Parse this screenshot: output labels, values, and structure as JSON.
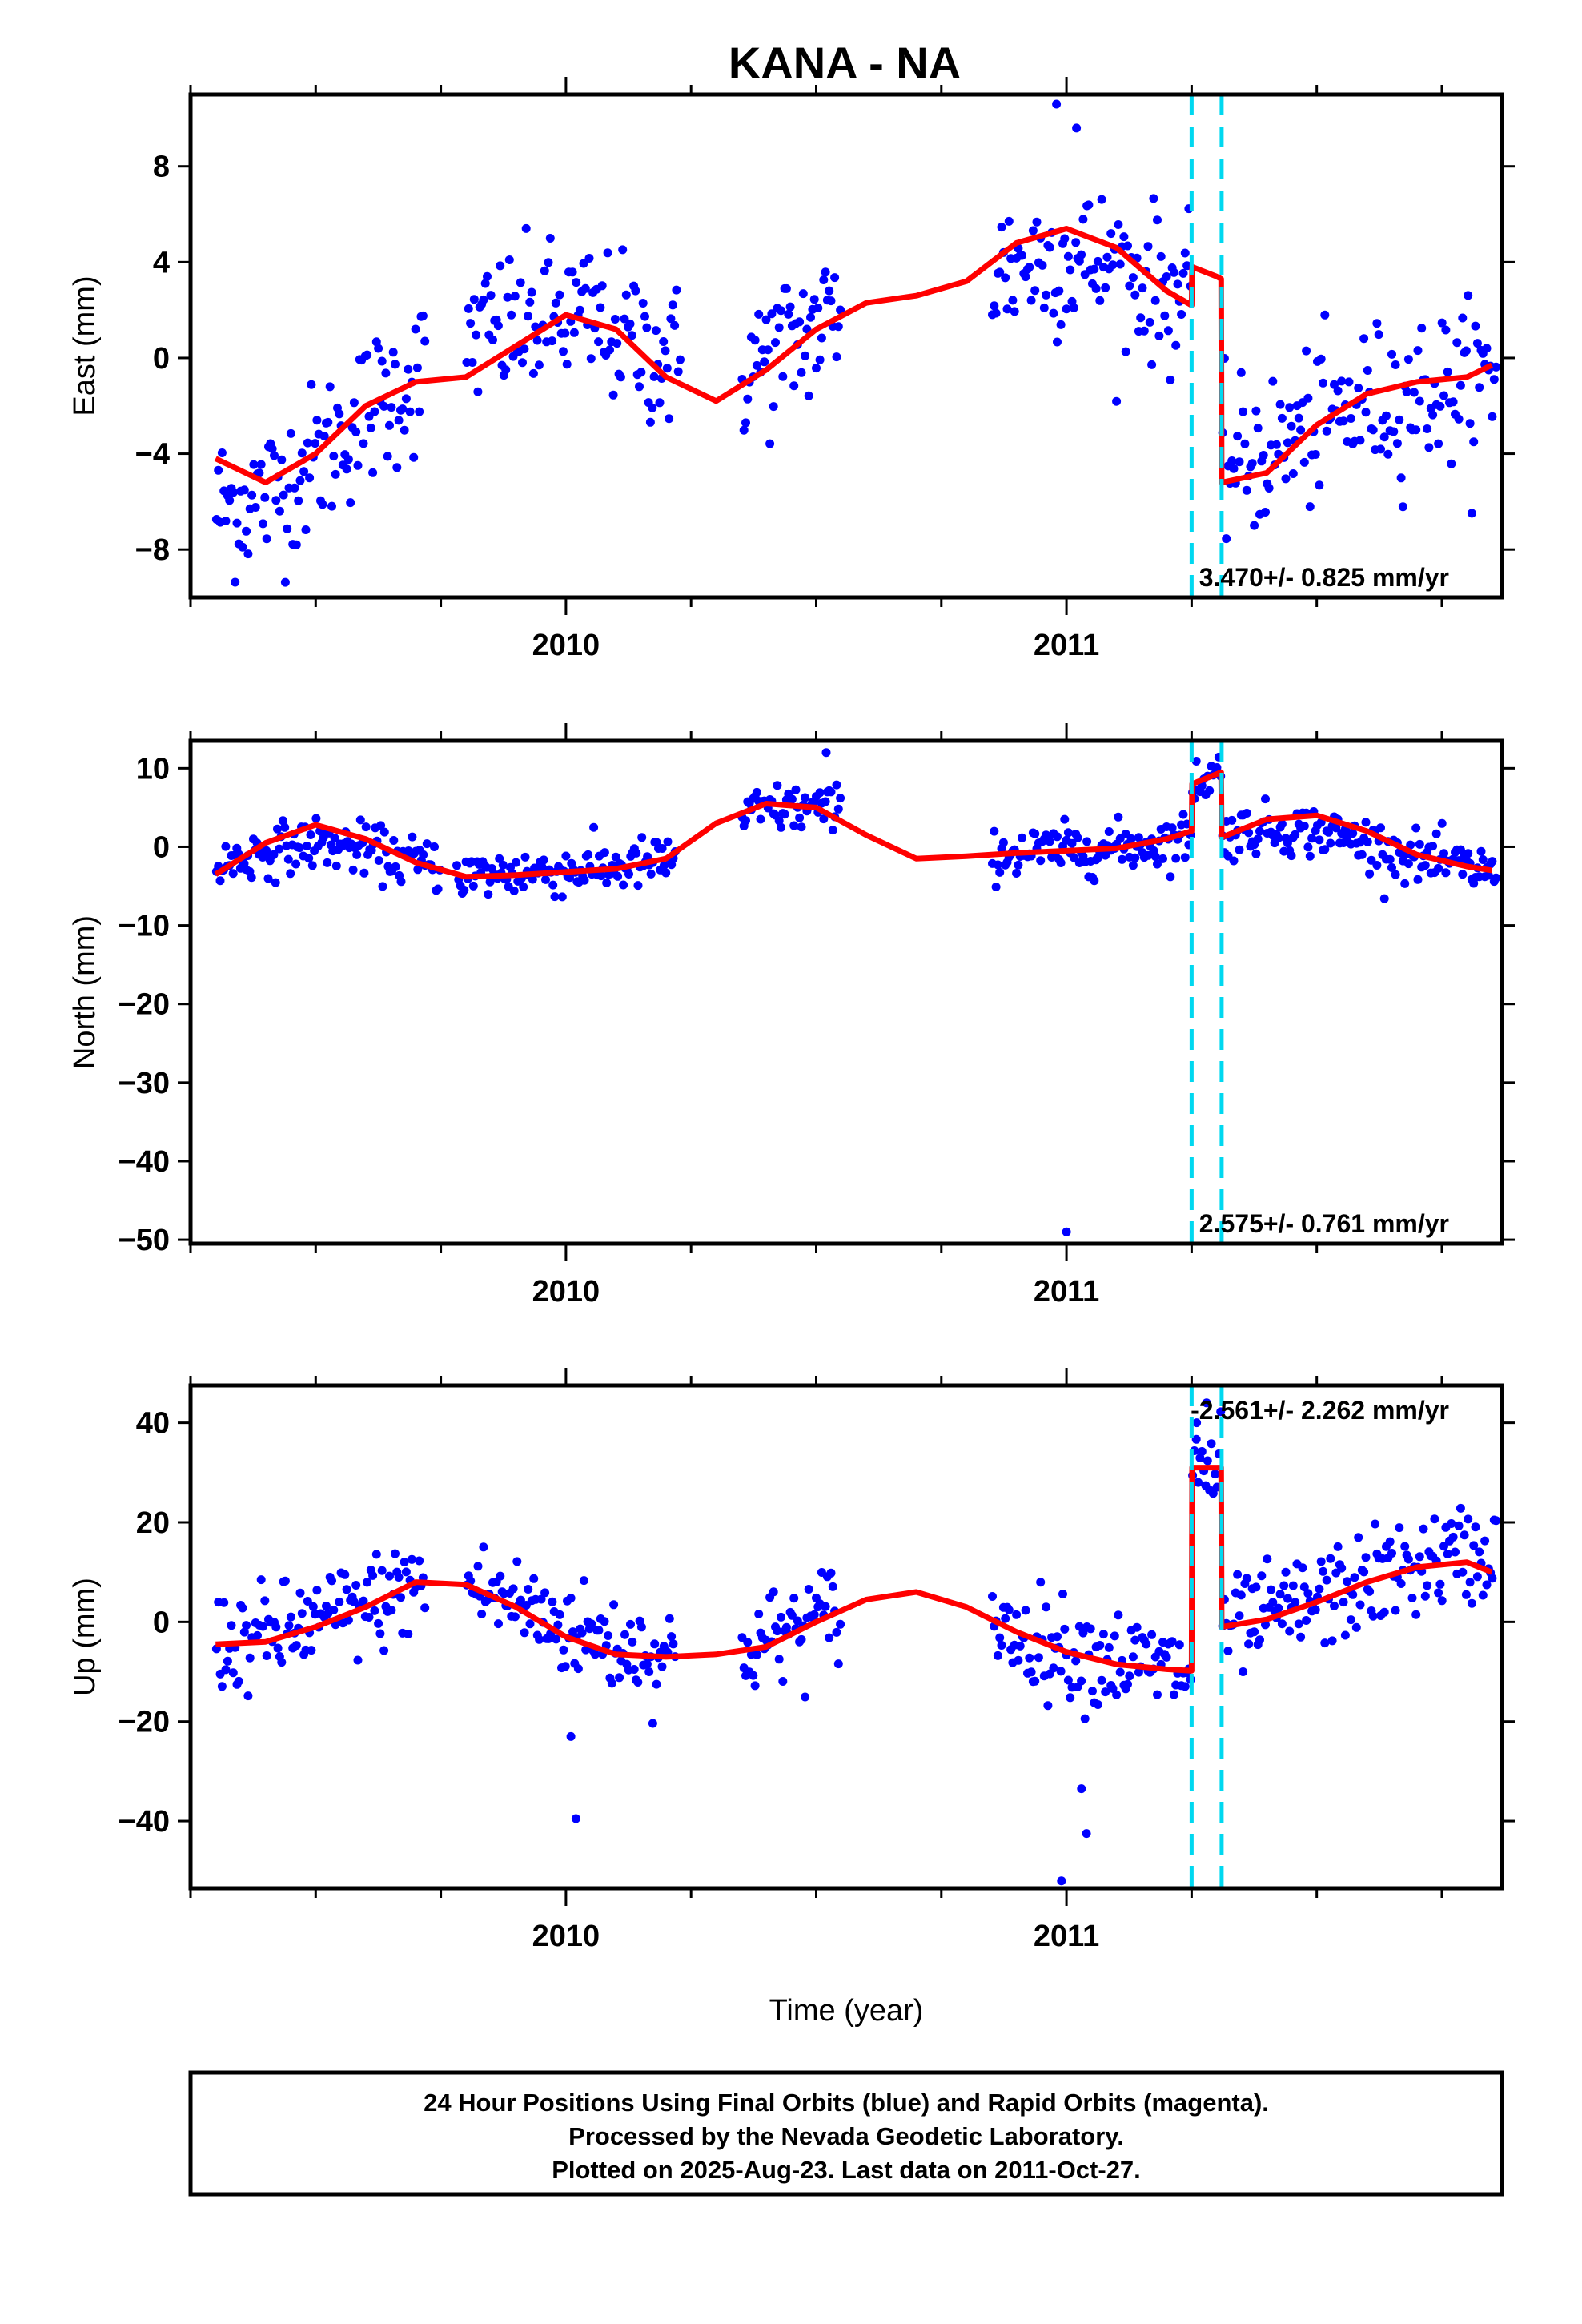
{
  "title": "KANA - NA",
  "colors": {
    "final_orbits": "#0000ff",
    "model": "#ff0000",
    "offset_lines": "#00d8f0",
    "frame": "#000000"
  },
  "chart_data": [
    {
      "type": "scatter",
      "name": "east",
      "ylabel": "East (mm)",
      "xlabel": "",
      "xlim": [
        2009.25,
        2011.87
      ],
      "ylim": [
        -10,
        11
      ],
      "x_ticks": [
        "2010",
        "2011"
      ],
      "y_ticks": [
        "8",
        "4",
        "0",
        "−4",
        "−8"
      ],
      "y_tick_values": [
        8,
        4,
        0,
        -4,
        -8
      ],
      "rate_label": "3.470+/- 0.825 mm/yr",
      "rate_position": "bottom-right",
      "offset_epochs": [
        2011.25,
        2011.31
      ],
      "model": {
        "x": [
          2009.3,
          2009.4,
          2009.5,
          2009.6,
          2009.7,
          2009.8,
          2009.9,
          2010.0,
          2010.1,
          2010.2,
          2010.3,
          2010.4,
          2010.5,
          2010.6,
          2010.7,
          2010.8,
          2010.9,
          2011.0,
          2011.1,
          2011.2,
          2011.25,
          2011.251,
          2011.3,
          2011.309,
          2011.31,
          2011.4,
          2011.5,
          2011.6,
          2011.7,
          2011.8,
          2011.85
        ],
        "y": [
          -4.2,
          -5.2,
          -4.0,
          -2.0,
          -1.0,
          -0.8,
          0.5,
          1.8,
          1.2,
          -0.8,
          -1.8,
          -0.5,
          1.2,
          2.3,
          2.6,
          3.2,
          4.8,
          5.4,
          4.6,
          2.8,
          2.2,
          3.8,
          3.4,
          3.3,
          -5.2,
          -4.8,
          -2.8,
          -1.5,
          -1.0,
          -0.8,
          -0.3
        ]
      },
      "segments": [
        {
          "x0": 2009.3,
          "x1": 2009.72,
          "y0": -8.3,
          "y1": -0.2
        },
        {
          "x0": 2009.8,
          "x1": 2010.23,
          "y0": 2.6,
          "y1": 0.6
        },
        {
          "x0": 2010.35,
          "x1": 2010.55,
          "y0": 0.0,
          "y1": 1.9
        },
        {
          "x0": 2010.85,
          "x1": 2011.25,
          "y0": 3.1,
          "y1": 2.8
        },
        {
          "x0": 2011.31,
          "x1": 2011.86,
          "y0": -3.6,
          "y1": -1.2
        }
      ],
      "scatter": 1.6,
      "outliers": [
        [
          2010.98,
          10.6
        ],
        [
          2011.02,
          9.6
        ]
      ]
    },
    {
      "type": "scatter",
      "name": "north",
      "ylabel": "North (mm)",
      "xlabel": "",
      "xlim": [
        2009.25,
        2011.87
      ],
      "ylim": [
        -50.5,
        13.5
      ],
      "x_ticks": [
        "2010",
        "2011"
      ],
      "y_ticks": [
        "10",
        "0",
        "−10",
        "−20",
        "−30",
        "−40",
        "−50"
      ],
      "y_tick_values": [
        10,
        0,
        -10,
        -20,
        -30,
        -40,
        -50
      ],
      "rate_label": "2.575+/- 0.761 mm/yr",
      "rate_position": "bottom-right",
      "offset_epochs": [
        2011.25,
        2011.31
      ],
      "model": {
        "x": [
          2009.3,
          2009.4,
          2009.5,
          2009.6,
          2009.7,
          2009.8,
          2009.9,
          2010.0,
          2010.1,
          2010.2,
          2010.3,
          2010.4,
          2010.5,
          2010.6,
          2010.7,
          2010.8,
          2010.9,
          2011.0,
          2011.1,
          2011.2,
          2011.25,
          2011.251,
          2011.309,
          2011.31,
          2011.4,
          2011.5,
          2011.6,
          2011.7,
          2011.8,
          2011.85
        ],
        "y": [
          -3.5,
          0.5,
          2.8,
          1.0,
          -2.0,
          -3.8,
          -3.6,
          -3.2,
          -2.8,
          -1.5,
          3.0,
          5.5,
          5.0,
          1.5,
          -1.5,
          -1.2,
          -0.8,
          -0.5,
          -0.2,
          1.0,
          2.0,
          8.0,
          9.5,
          1.2,
          3.5,
          4.0,
          2.0,
          -1.0,
          -2.5,
          -3.0
        ]
      },
      "segments": [
        {
          "x0": 2009.3,
          "x1": 2009.75,
          "y0": -1.5,
          "y1": -2.0
        },
        {
          "x0": 2009.78,
          "x1": 2010.22,
          "y0": -3.5,
          "y1": -2.0
        },
        {
          "x0": 2010.35,
          "x1": 2010.55,
          "y0": 3.5,
          "y1": 5.5
        },
        {
          "x0": 2010.85,
          "x1": 2011.25,
          "y0": -0.8,
          "y1": 0.5
        },
        {
          "x0": 2011.25,
          "x1": 2011.31,
          "y0": 8.5,
          "y1": 9.5
        },
        {
          "x0": 2011.31,
          "x1": 2011.86,
          "y0": 2.0,
          "y1": -3.5
        }
      ],
      "scatter": 1.6,
      "outliers": [
        [
          2011.0,
          -49.0
        ],
        [
          2010.52,
          12.0
        ]
      ]
    },
    {
      "type": "scatter",
      "name": "up",
      "ylabel": "Up (mm)",
      "xlabel": "Time (year)",
      "xlim": [
        2009.25,
        2011.87
      ],
      "ylim": [
        -53.5,
        47.5
      ],
      "x_ticks": [
        "2010",
        "2011"
      ],
      "y_ticks": [
        "40",
        "20",
        "0",
        "−20",
        "−40"
      ],
      "y_tick_values": [
        40,
        20,
        0,
        -20,
        -40
      ],
      "rate_label": "-2.561+/- 2.262 mm/yr",
      "rate_position": "top-right",
      "offset_epochs": [
        2011.25,
        2011.31
      ],
      "model": {
        "x": [
          2009.3,
          2009.4,
          2009.5,
          2009.6,
          2009.7,
          2009.8,
          2009.9,
          2010.0,
          2010.1,
          2010.2,
          2010.3,
          2010.4,
          2010.5,
          2010.6,
          2010.7,
          2010.8,
          2010.9,
          2011.0,
          2011.1,
          2011.2,
          2011.25,
          2011.251,
          2011.309,
          2011.31,
          2011.4,
          2011.5,
          2011.6,
          2011.7,
          2011.8,
          2011.85
        ],
        "y": [
          -4.5,
          -4.0,
          -1.0,
          3.0,
          8.0,
          7.5,
          3.0,
          -3.0,
          -6.5,
          -7.0,
          -6.5,
          -5.0,
          0.0,
          4.5,
          6.0,
          3.0,
          -2.0,
          -6.0,
          -8.5,
          -9.5,
          -9.8,
          31.0,
          31.0,
          -1.0,
          0.5,
          4.0,
          8.0,
          11.0,
          12.0,
          10.0
        ]
      },
      "segments": [
        {
          "x0": 2009.3,
          "x1": 2009.72,
          "y0": -5.0,
          "y1": 7.0
        },
        {
          "x0": 2009.8,
          "x1": 2010.22,
          "y0": 8.0,
          "y1": -7.0
        },
        {
          "x0": 2010.35,
          "x1": 2010.55,
          "y0": -5.0,
          "y1": 3.0
        },
        {
          "x0": 2010.85,
          "x1": 2011.25,
          "y0": -2.0,
          "y1": -10.0
        },
        {
          "x0": 2011.25,
          "x1": 2011.31,
          "y0": 31.0,
          "y1": 30.0
        },
        {
          "x0": 2011.31,
          "x1": 2011.86,
          "y0": -2.0,
          "y1": 17.0
        }
      ],
      "scatter": 5.0,
      "outliers": [
        [
          2010.02,
          -39.5
        ],
        [
          2010.99,
          -52.0
        ],
        [
          2011.04,
          -42.5
        ],
        [
          2011.03,
          -33.5
        ],
        [
          2010.01,
          -23.0
        ],
        [
          2011.26,
          40.0
        ],
        [
          2011.28,
          44.0
        ]
      ]
    }
  ],
  "footer": {
    "line1": "24 Hour Positions Using Final Orbits (blue) and Rapid Orbits (magenta).",
    "line2": "Processed by the Nevada Geodetic Laboratory.",
    "line3": "Plotted on 2025-Aug-23. Last data on 2011-Oct-27."
  }
}
